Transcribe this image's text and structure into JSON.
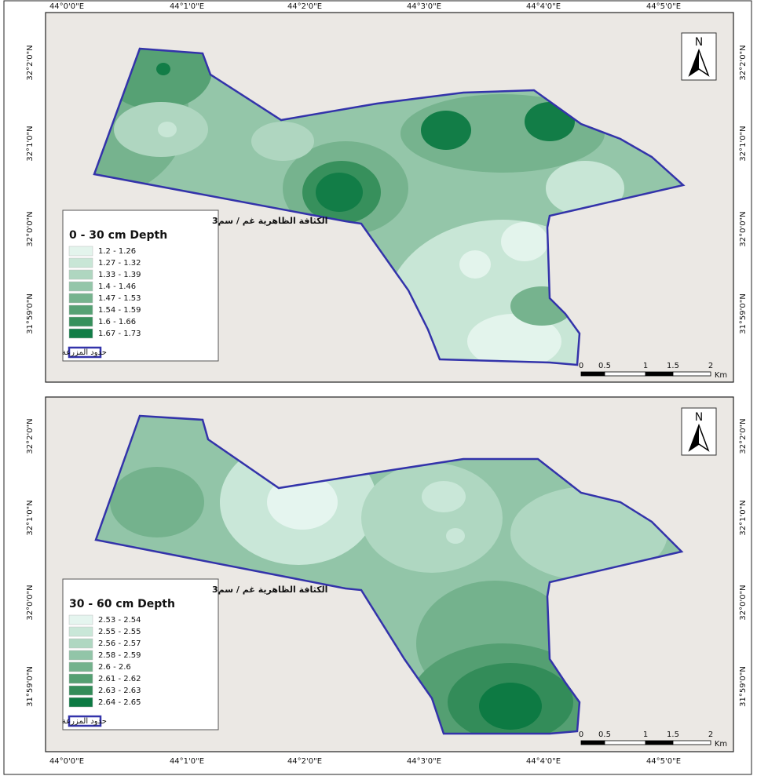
{
  "panels": [
    {
      "x_labels": [
        "44°0'0\"E",
        "44°1'0\"E",
        "44°2'0\"E",
        "44°3'0\"E",
        "44°4'0\"E",
        "44°5'0\"E"
      ],
      "y_labels": [
        "32°2'0\"N",
        "32°1'0\"N",
        "32°0'0\"N",
        "31°59'0\"N"
      ],
      "north": "N",
      "scale_labels": [
        "0",
        "0.5",
        "1",
        "1.5",
        "2"
      ],
      "scale_unit": "Km",
      "legend": {
        "title_ar": "الكثافة الظاهرية  غم / سم3",
        "title_en": "0 - 30 cm Depth",
        "classes": [
          {
            "label": "1.2 - 1.26",
            "color": "#e3f4ec"
          },
          {
            "label": "1.27 - 1.32",
            "color": "#c8e6d6"
          },
          {
            "label": "1.33 - 1.39",
            "color": "#afd6c0"
          },
          {
            "label": "1.4 - 1.46",
            "color": "#94c6a9"
          },
          {
            "label": "1.47 - 1.53",
            "color": "#76b38e"
          },
          {
            "label": "1.54 - 1.59",
            "color": "#56a174"
          },
          {
            "label": "1.6 - 1.66",
            "color": "#37905c"
          },
          {
            "label": "1.67 - 1.73",
            "color": "#127d47"
          }
        ],
        "boundary": "حدود المزرعة"
      }
    },
    {
      "x_labels": [
        "44°0'0\"E",
        "44°1'0\"E",
        "44°2'0\"E",
        "44°3'0\"E",
        "44°4'0\"E",
        "44°5'0\"E"
      ],
      "y_labels": [
        "32°2'0\"N",
        "32°1'0\"N",
        "32°0'0\"N",
        "31°59'0\"N"
      ],
      "north": "N",
      "scale_labels": [
        "0",
        "0.5",
        "1",
        "1.5",
        "2"
      ],
      "scale_unit": "Km",
      "legend": {
        "title_ar": "الكثافة الظاهرية  غم / سم3",
        "title_en": "30 - 60 cm Depth",
        "classes": [
          {
            "label": "2.53 - 2.54",
            "color": "#e5f5ef"
          },
          {
            "label": "2.55 - 2.55",
            "color": "#c9e7d8"
          },
          {
            "label": "2.56 - 2.57",
            "color": "#afd7c1"
          },
          {
            "label": "2.58 - 2.59",
            "color": "#92c5a8"
          },
          {
            "label": "2.6 - 2.6",
            "color": "#74b28d"
          },
          {
            "label": "2.61 - 2.62",
            "color": "#549f72"
          },
          {
            "label": "2.63 - 2.63",
            "color": "#338c59"
          },
          {
            "label": "2.64 - 2.65",
            "color": "#0d7a43"
          }
        ],
        "boundary": "حدود المزرعة"
      }
    }
  ]
}
